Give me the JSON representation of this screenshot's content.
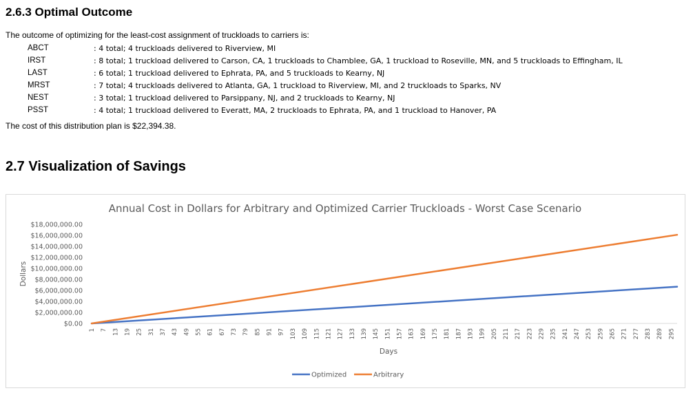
{
  "section_outcome": {
    "title": "2.6.3  Optimal Outcome",
    "intro": "The outcome of optimizing for the least-cost assignment of truckloads to carriers is:",
    "carriers": [
      {
        "code": "ABCT",
        "desc": ": 4 total; 4 truckloads delivered to Riverview, MI"
      },
      {
        "code": "IRST",
        "desc": ": 8 total; 1 truckload delivered to Carson, CA, 1 truckloads to Chamblee, GA, 1 truckload to Roseville, MN,  and 5 truckloads to Effingham, IL"
      },
      {
        "code": "LAST",
        "desc": ": 6 total; 1 truckload delivered to Ephrata, PA, and 5 truckloads to Kearny, NJ"
      },
      {
        "code": "MRST",
        "desc": ": 7 total; 4 truckloads delivered to Atlanta, GA, 1 truckload to Riverview, MI, and 2 truckloads to Sparks, NV"
      },
      {
        "code": "NEST",
        "desc": ": 3 total; 1 truckload delivered to Parsippany, NJ, and 2 truckloads to Kearny, NJ"
      },
      {
        "code": "PSST",
        "desc": ": 4 total; 1 truckload delivered to Everatt, MA, 2 truckloads to Ephrata, PA, and 1 truckload to Hanover, PA"
      }
    ],
    "cost_text": "The cost of this distribution plan is $22,394.38."
  },
  "section_visualization": {
    "title": "2.7  Visualization of Savings"
  },
  "chart_data": {
    "type": "line",
    "title": "Annual Cost in Dollars for Arbitrary and Optimized Carrier Truckloads - Worst Case Scenario",
    "xlabel": "Days",
    "ylabel": "Dollars",
    "x_range": [
      1,
      298
    ],
    "ylim": [
      0,
      18000000
    ],
    "y_ticks": [
      0,
      2000000,
      4000000,
      6000000,
      8000000,
      10000000,
      12000000,
      14000000,
      16000000,
      18000000
    ],
    "y_tick_labels": [
      "$0.00",
      "$2,000,000.00",
      "$4,000,000.00",
      "$6,000,000.00",
      "$8,000,000.00",
      "$10,000,000.00",
      "$12,000,000.00",
      "$14,000,000.00",
      "$16,000,000.00",
      "$18,000,000.00"
    ],
    "x_tick_labels": [
      "1",
      "7",
      "13",
      "19",
      "25",
      "31",
      "37",
      "43",
      "49",
      "55",
      "61",
      "67",
      "73",
      "79",
      "85",
      "91",
      "97",
      "103",
      "109",
      "115",
      "121",
      "127",
      "133",
      "139",
      "145",
      "151",
      "157",
      "163",
      "169",
      "175",
      "181",
      "187",
      "193",
      "199",
      "205",
      "211",
      "217",
      "223",
      "229",
      "235",
      "241",
      "247",
      "253",
      "259",
      "265",
      "271",
      "277",
      "283",
      "289",
      "295"
    ],
    "legend_position": "bottom",
    "series": [
      {
        "name": "Optimized",
        "color": "#4472c4",
        "x": [
          1,
          298
        ],
        "values": [
          0,
          6680000
        ]
      },
      {
        "name": "Arbitrary",
        "color": "#ed7d31",
        "x": [
          1,
          298
        ],
        "values": [
          0,
          16100000
        ]
      }
    ]
  }
}
